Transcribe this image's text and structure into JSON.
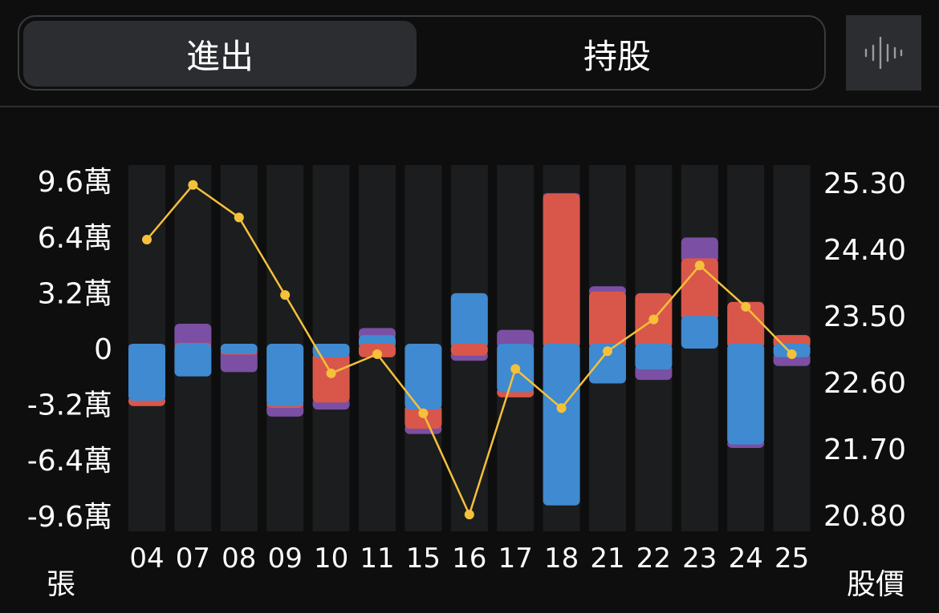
{
  "tabs": [
    {
      "label": "進出",
      "active": true
    },
    {
      "label": "持股",
      "active": false
    }
  ],
  "side_button_icon": "waveform-icon",
  "chart_data": {
    "type": "bar",
    "stacked": true,
    "categories": [
      "04",
      "07",
      "08",
      "09",
      "10",
      "11",
      "15",
      "16",
      "17",
      "18",
      "21",
      "22",
      "23",
      "24",
      "25"
    ],
    "series": [
      {
        "color": "#3f8ad0",
        "values": [
          -3.0,
          -1.6,
          -0.3,
          -3.3,
          -0.5,
          0.5,
          -3.5,
          2.9,
          -2.5,
          -9.0,
          -2.0,
          -1.2,
          1.6,
          -5.5,
          -0.5
        ]
      },
      {
        "color": "#d9574a",
        "values": [
          -0.3,
          0.05,
          -0.05,
          -0.1,
          -2.6,
          -0.5,
          -1.1,
          -0.4,
          -0.3,
          8.6,
          3.0,
          2.9,
          3.3,
          2.4,
          0.5
        ]
      },
      {
        "color": "#7b4fa3",
        "values": [
          0.0,
          1.1,
          -1.0,
          -0.5,
          -0.4,
          0.4,
          -0.3,
          -0.3,
          0.8,
          0.05,
          0.3,
          -0.6,
          1.2,
          -0.2,
          -0.5
        ]
      }
    ],
    "price_line": {
      "color": "#f5c03a",
      "values": [
        24.53,
        25.27,
        24.83,
        23.78,
        22.72,
        22.98,
        22.18,
        20.81,
        22.78,
        22.25,
        23.02,
        23.45,
        24.18,
        23.62,
        22.98
      ]
    },
    "y_left": {
      "ticks": [
        9.6,
        6.4,
        3.2,
        0,
        -3.2,
        -6.4,
        -9.6
      ],
      "tick_labels": [
        "9.6萬",
        "6.4萬",
        "3.2萬",
        "0",
        "-3.2萬",
        "-6.4萬",
        "-9.6萬"
      ],
      "range": [
        -10.5,
        10.5
      ],
      "unit_label": "張"
    },
    "y_right": {
      "ticks": [
        25.3,
        24.4,
        23.5,
        22.6,
        21.7,
        20.8
      ],
      "tick_labels": [
        "25.30",
        "24.40",
        "23.50",
        "22.60",
        "21.70",
        "20.80"
      ],
      "range": [
        20.8,
        25.3
      ],
      "unit_label": "股價"
    },
    "grid": false
  }
}
